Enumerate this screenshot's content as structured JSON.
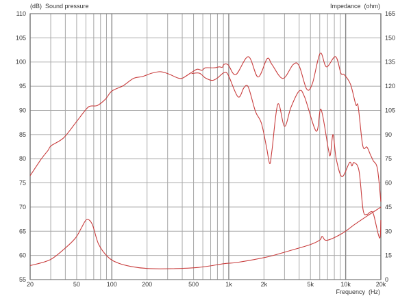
{
  "chart_data": {
    "type": "line",
    "ylabel": "(dB)  Sound pressure",
    "y2label": "Impedance  (ohm)",
    "xlabel": "Frequency  (Hz)",
    "x_scale": "log",
    "xlim": [
      20,
      20000
    ],
    "ylim": [
      55,
      110
    ],
    "y2lim": [
      0,
      165
    ],
    "grid": true,
    "curve_color": "#c83c3c",
    "x_ticks": [
      20,
      50,
      100,
      200,
      500,
      1000,
      2000,
      5000,
      10000,
      20000
    ],
    "x_tick_labels": [
      "20",
      "50",
      "100",
      "200",
      "500",
      "1k",
      "2k",
      "5k",
      "10k",
      "20k"
    ],
    "x_gridlines": [
      20,
      30,
      40,
      50,
      60,
      70,
      80,
      90,
      100,
      200,
      300,
      400,
      500,
      600,
      700,
      800,
      900,
      1000,
      2000,
      3000,
      4000,
      5000,
      6000,
      7000,
      8000,
      9000,
      10000,
      20000
    ],
    "y_ticks": [
      55,
      60,
      65,
      70,
      75,
      80,
      85,
      90,
      95,
      100,
      105,
      110
    ],
    "y2_ticks": [
      0,
      15,
      30,
      45,
      60,
      75,
      90,
      105,
      120,
      135,
      150,
      165
    ],
    "series": [
      {
        "axis": "left",
        "points": [
          [
            20,
            76.5
          ],
          [
            25,
            80
          ],
          [
            28.4,
            81.7
          ],
          [
            30.3,
            82.7
          ],
          [
            38.6,
            84.3
          ],
          [
            48.9,
            87.4
          ],
          [
            60.6,
            90.3
          ],
          [
            66,
            90.9
          ],
          [
            75,
            91.0
          ],
          [
            88,
            92.3
          ],
          [
            100,
            94.0
          ],
          [
            125,
            95.1
          ],
          [
            153,
            96.6
          ],
          [
            183,
            97.0
          ],
          [
            220,
            97.7
          ],
          [
            262,
            98.0
          ],
          [
            308,
            97.5
          ],
          [
            367,
            96.7
          ],
          [
            404,
            96.7
          ],
          [
            470,
            97.7
          ],
          [
            536,
            98.5
          ],
          [
            590,
            98.3
          ],
          [
            632,
            98.8
          ],
          [
            750,
            98.8
          ],
          [
            830,
            99.0
          ],
          [
            880,
            98.9
          ],
          [
            910,
            99.5
          ],
          [
            990,
            99.4
          ],
          [
            1150,
            97.4
          ],
          [
            1470,
            101.1
          ],
          [
            1780,
            96.9
          ],
          [
            2130,
            100.7
          ],
          [
            2340,
            99.5
          ],
          [
            2900,
            96.6
          ],
          [
            3560,
            99.5
          ],
          [
            4000,
            99.2
          ],
          [
            4640,
            94.4
          ],
          [
            5200,
            95.6
          ],
          [
            6050,
            101.8
          ],
          [
            6850,
            99.0
          ],
          [
            8200,
            101.1
          ],
          [
            9100,
            97.7
          ],
          [
            9700,
            97.4
          ],
          [
            11000,
            95.4
          ],
          [
            12200,
            91.2
          ],
          [
            12800,
            90.8
          ],
          [
            14000,
            82.7
          ],
          [
            15200,
            82.4
          ],
          [
            16300,
            80.8
          ],
          [
            17200,
            79.6
          ],
          [
            18700,
            77.9
          ],
          [
            20000,
            71.1
          ]
        ]
      },
      {
        "axis": "left",
        "points": [
          [
            480,
            97.6
          ],
          [
            560,
            97.7
          ],
          [
            632,
            96.7
          ],
          [
            720,
            96.2
          ],
          [
            800,
            96.7
          ],
          [
            910,
            97.8
          ],
          [
            990,
            97.3
          ],
          [
            1200,
            92.8
          ],
          [
            1350,
            94.7
          ],
          [
            1470,
            94.8
          ],
          [
            1690,
            89.8
          ],
          [
            1900,
            87.4
          ],
          [
            2100,
            82.5
          ],
          [
            2240,
            79.0
          ],
          [
            2340,
            81.7
          ],
          [
            2630,
            91.3
          ],
          [
            3000,
            86.7
          ],
          [
            3400,
            90.6
          ],
          [
            4000,
            94.0
          ],
          [
            4450,
            92.8
          ],
          [
            5600,
            85.7
          ],
          [
            6150,
            90.2
          ],
          [
            7100,
            82.1
          ],
          [
            7400,
            80.8
          ],
          [
            7800,
            85.0
          ],
          [
            8300,
            80
          ],
          [
            9300,
            76.3
          ],
          [
            10800,
            79.2
          ],
          [
            11300,
            78.5
          ],
          [
            11800,
            79.2
          ],
          [
            13000,
            77.5
          ],
          [
            14100,
            69.4
          ],
          [
            15200,
            68.5
          ],
          [
            16300,
            69.0
          ],
          [
            17300,
            68.5
          ],
          [
            19500,
            63.6
          ],
          [
            20000,
            67.3
          ]
        ]
      },
      {
        "axis": "right",
        "points": [
          [
            20,
            8.7
          ],
          [
            29.6,
            12.3
          ],
          [
            40,
            19.6
          ],
          [
            49,
            25.9
          ],
          [
            55,
            32.2
          ],
          [
            61,
            37.3
          ],
          [
            68,
            34.3
          ],
          [
            77,
            22
          ],
          [
            93,
            13.9
          ],
          [
            114,
            10.2
          ],
          [
            147,
            8.1
          ],
          [
            200,
            6.9
          ],
          [
            290,
            6.7
          ],
          [
            540,
            7.5
          ],
          [
            913,
            9.9
          ],
          [
            1170,
            10.6
          ],
          [
            2090,
            13.9
          ],
          [
            3340,
            18.0
          ],
          [
            5010,
            21.8
          ],
          [
            6000,
            24.5
          ],
          [
            6300,
            26.8
          ],
          [
            6900,
            24.4
          ],
          [
            9300,
            28.6
          ],
          [
            12000,
            34.3
          ],
          [
            15500,
            39.8
          ],
          [
            20000,
            45.0
          ]
        ]
      }
    ]
  }
}
